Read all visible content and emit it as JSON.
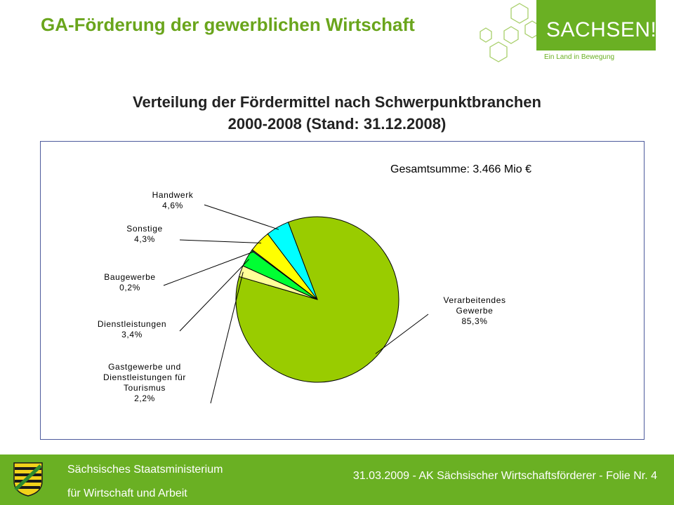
{
  "header": {
    "title": "GA-Förderung der gewerblichen Wirtschaft",
    "logo_text": "SACHSEN!",
    "logo_subtitle": "Ein Land in Bewegung",
    "accent_color": "#6ab023"
  },
  "chart_data": {
    "type": "pie",
    "title_line1": "Verteilung der Fördermittel nach Schwerpunktbranchen",
    "title_line2": "2000-2008  (Stand: 31.12.2008)",
    "total_label": "Gesamtsumme:  3.466 Mio €",
    "slices": [
      {
        "name": "Verarbeitendes Gewerbe",
        "label_lines": [
          "Verarbeitendes",
          "Gewerbe"
        ],
        "value_label": "85,3%",
        "value": 85.3,
        "color": "#99cc00"
      },
      {
        "name": "Gastgewerbe und Dienstleistungen für Tourismus",
        "label_lines": [
          "Gastgewerbe und",
          "Dienstleistungen für",
          "Tourismus"
        ],
        "value_label": "2,2%",
        "value": 2.2,
        "color": "#ffff99"
      },
      {
        "name": "Dienstleistungen",
        "label_lines": [
          "Dienstleistungen"
        ],
        "value_label": "3,4%",
        "value": 3.4,
        "color": "#00ff33"
      },
      {
        "name": "Baugewerbe",
        "label_lines": [
          "Baugewerbe"
        ],
        "value_label": "0,2%",
        "value": 0.2,
        "color": "#9999ff"
      },
      {
        "name": "Sonstige",
        "label_lines": [
          "Sonstige"
        ],
        "value_label": "4,3%",
        "value": 4.3,
        "color": "#ffff00"
      },
      {
        "name": "Handwerk",
        "label_lines": [
          "Handwerk"
        ],
        "value_label": "4,6%",
        "value": 4.6,
        "color": "#00ffff"
      }
    ]
  },
  "footer": {
    "ministry_line1": "Sächsisches Staatsministerium",
    "ministry_line2": "für Wirtschaft und Arbeit",
    "right_text": "31.03.2009 - AK Sächsischer Wirtschaftsförderer - Folie Nr. 4"
  }
}
